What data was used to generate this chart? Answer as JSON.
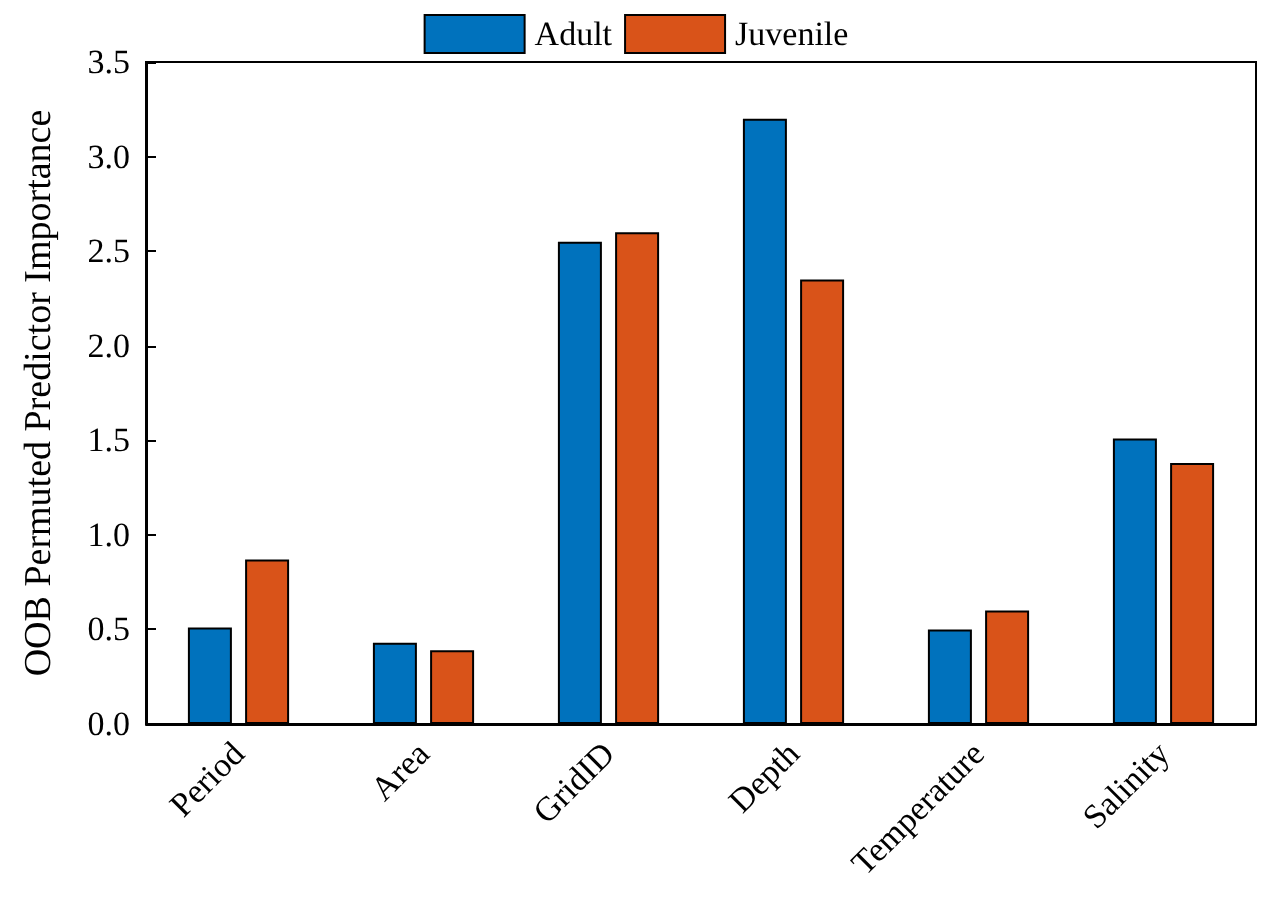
{
  "chart_data": {
    "type": "bar",
    "ylabel": "OOB Permuted Predictor Importance",
    "categories": [
      "Period",
      "Area",
      "GridID",
      "Depth",
      "Temperature",
      "Salinity"
    ],
    "series": [
      {
        "name": "Adult",
        "color": "#0072bd",
        "values": [
          0.51,
          0.43,
          2.55,
          3.2,
          0.5,
          1.51
        ]
      },
      {
        "name": "Juvenile",
        "color": "#d95319",
        "values": [
          0.87,
          0.39,
          2.6,
          2.35,
          0.6,
          1.38
        ]
      }
    ],
    "ylim": [
      0,
      3.5
    ],
    "yticks": [
      {
        "value": 0,
        "label": "0.0"
      },
      0.5,
      {
        "value": 1,
        "label": "1.0"
      },
      1.5,
      {
        "value": 2,
        "label": "2.0"
      },
      2.5,
      {
        "value": 3,
        "label": "3.0"
      },
      3.5
    ],
    "grid": false,
    "legend": "top"
  }
}
